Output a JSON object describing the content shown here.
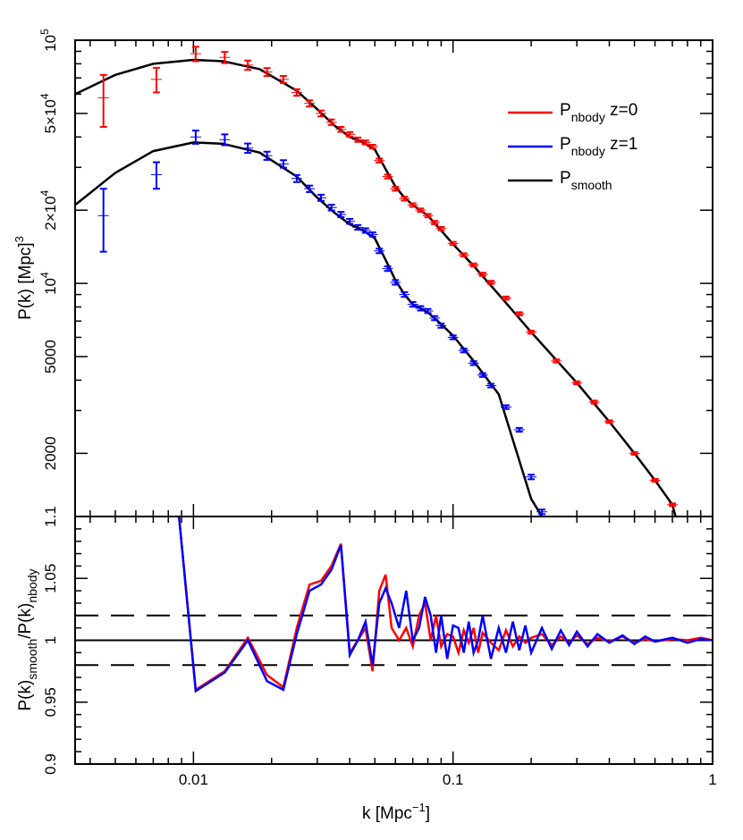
{
  "chart_data": [
    {
      "type": "line",
      "panel": "top",
      "xscale": "log",
      "yscale": "log",
      "xlim": [
        0.0035,
        1
      ],
      "ylim": [
        1100,
        100000
      ],
      "ylabel": "P(k)  [Mpc]",
      "ylabel_sup": "3",
      "xlabel": "k  [Mpc",
      "xlabel_sup": "−1",
      "xlabel_tail": "]",
      "y_ticks": [
        {
          "value": 100000,
          "label": "10",
          "sup": "5"
        },
        {
          "value": 50000,
          "label": "5×10",
          "sup": "4"
        },
        {
          "value": 20000,
          "label": "2×10",
          "sup": "4"
        },
        {
          "value": 10000,
          "label": "10",
          "sup": "4"
        },
        {
          "value": 5000,
          "label": "5000",
          "sup": ""
        },
        {
          "value": 2000,
          "label": "2000",
          "sup": ""
        }
      ],
      "legend": [
        {
          "main": "P",
          "sub": "nbody",
          "tail": " z=0",
          "color": "#ff0000"
        },
        {
          "main": "P",
          "sub": "nbody",
          "tail": " z=1",
          "color": "#0000ff"
        },
        {
          "main": "P",
          "sub": "smooth",
          "tail": "",
          "color": "#000000"
        }
      ],
      "legend_position": "top-right",
      "smooth_curves": [
        {
          "color": "#000000",
          "x": [
            0.0035,
            0.005,
            0.007,
            0.01,
            0.013,
            0.018,
            0.025,
            0.03,
            0.035,
            0.04,
            0.045,
            0.05,
            0.055,
            0.06,
            0.065,
            0.07,
            0.08,
            0.09,
            0.1,
            0.12,
            0.15,
            0.2,
            0.3,
            0.4,
            0.5,
            0.6,
            0.7,
            0.72
          ],
          "y": [
            60000,
            72000,
            80000,
            83000,
            82000,
            76000,
            62000,
            52000,
            44500,
            40000,
            38000,
            35500,
            29500,
            25000,
            22500,
            21000,
            19000,
            16500,
            14500,
            11800,
            9000,
            6300,
            3900,
            2700,
            2000,
            1550,
            1230,
            1100
          ]
        },
        {
          "color": "#000000",
          "x": [
            0.0035,
            0.005,
            0.007,
            0.01,
            0.013,
            0.018,
            0.025,
            0.03,
            0.035,
            0.04,
            0.045,
            0.05,
            0.055,
            0.06,
            0.065,
            0.07,
            0.08,
            0.09,
            0.1,
            0.12,
            0.15,
            0.2,
            0.22
          ],
          "y": [
            21000,
            28500,
            35000,
            38000,
            37500,
            34500,
            27500,
            22500,
            19500,
            17500,
            16500,
            15300,
            12500,
            10300,
            9000,
            8200,
            7600,
            6800,
            6100,
            4800,
            3500,
            1300,
            1100
          ]
        }
      ],
      "series": [
        {
          "name": "P nbody z=0",
          "color": "#ff0000",
          "x": [
            0.0045,
            0.0072,
            0.0102,
            0.0132,
            0.0162,
            0.0192,
            0.0222,
            0.025,
            0.028,
            0.031,
            0.034,
            0.037,
            0.04,
            0.043,
            0.046,
            0.049,
            0.052,
            0.056,
            0.06,
            0.065,
            0.07,
            0.075,
            0.08,
            0.085,
            0.09,
            0.1,
            0.11,
            0.12,
            0.13,
            0.14,
            0.16,
            0.18,
            0.2,
            0.25,
            0.3,
            0.35,
            0.4,
            0.5,
            0.6,
            0.7
          ],
          "y": [
            58000,
            69000,
            88000,
            85000,
            79000,
            74000,
            69000,
            61000,
            55000,
            50000,
            46000,
            43000,
            41000,
            39000,
            38000,
            36500,
            32000,
            27500,
            24500,
            22300,
            21000,
            20000,
            19000,
            17800,
            16800,
            14600,
            13100,
            11900,
            10900,
            10100,
            8700,
            7500,
            6300,
            4800,
            3900,
            3250,
            2700,
            2000,
            1550,
            1230
          ],
          "err": [
            14000,
            8000,
            6000,
            4500,
            3500,
            2800,
            2300,
            1900,
            1600,
            1400,
            1200,
            1000,
            900,
            800,
            700,
            650,
            600,
            500,
            450,
            400,
            350,
            320,
            300,
            280,
            260,
            220,
            200,
            180,
            160,
            150,
            130,
            110,
            90,
            70,
            55,
            45,
            35,
            25,
            20,
            15
          ]
        },
        {
          "name": "P nbody z=1",
          "color": "#0000ff",
          "x": [
            0.0045,
            0.0072,
            0.0102,
            0.0132,
            0.0162,
            0.0192,
            0.0222,
            0.025,
            0.028,
            0.031,
            0.034,
            0.037,
            0.04,
            0.043,
            0.046,
            0.049,
            0.052,
            0.056,
            0.06,
            0.065,
            0.07,
            0.075,
            0.08,
            0.085,
            0.09,
            0.1,
            0.11,
            0.12,
            0.13,
            0.14,
            0.16,
            0.18,
            0.2,
            0.22
          ],
          "y": [
            19000,
            28000,
            40000,
            39000,
            36000,
            33500,
            31000,
            27000,
            24500,
            22500,
            20500,
            19200,
            18000,
            17000,
            16500,
            15900,
            13600,
            11500,
            10100,
            9000,
            8200,
            7900,
            7700,
            7200,
            6700,
            6000,
            5300,
            4700,
            4200,
            3800,
            3100,
            2500,
            1600,
            1150
          ],
          "err": [
            5500,
            3500,
            2500,
            2000,
            1600,
            1300,
            1100,
            900,
            750,
            650,
            550,
            480,
            420,
            380,
            350,
            320,
            290,
            250,
            220,
            200,
            180,
            165,
            150,
            140,
            130,
            110,
            95,
            85,
            75,
            65,
            55,
            45,
            35,
            25
          ]
        }
      ]
    },
    {
      "type": "line",
      "panel": "bottom",
      "xscale": "log",
      "xlim": [
        0.0035,
        1
      ],
      "ylim": [
        0.9,
        1.1
      ],
      "ylabel_main": "P(k)",
      "ylabel_sub1": "smooth",
      "ylabel_mid": "/P(k)",
      "ylabel_sub2": "nbody",
      "y_ticks": [
        {
          "value": 0.9,
          "label": "0.9"
        },
        {
          "value": 0.95,
          "label": "0.95"
        },
        {
          "value": 1.0,
          "label": "1"
        },
        {
          "value": 1.05,
          "label": "1.05"
        },
        {
          "value": 1.1,
          "label": "1.1"
        }
      ],
      "x_ticks": [
        {
          "value": 0.01,
          "label": "0.01"
        },
        {
          "value": 0.1,
          "label": "0.1"
        },
        {
          "value": 1,
          "label": "1"
        }
      ],
      "reference_lines": [
        {
          "value": 1.0,
          "style": "solid"
        },
        {
          "value": 1.02,
          "style": "dashed"
        },
        {
          "value": 0.98,
          "style": "dashed"
        }
      ],
      "series": [
        {
          "name": "z=0",
          "color": "#ff0000",
          "x": [
            0.0088,
            0.0102,
            0.0132,
            0.0162,
            0.0192,
            0.0222,
            0.025,
            0.028,
            0.031,
            0.034,
            0.037,
            0.04,
            0.043,
            0.046,
            0.049,
            0.052,
            0.055,
            0.058,
            0.062,
            0.066,
            0.07,
            0.074,
            0.078,
            0.082,
            0.086,
            0.09,
            0.095,
            0.1,
            0.105,
            0.11,
            0.115,
            0.12,
            0.125,
            0.13,
            0.14,
            0.15,
            0.16,
            0.17,
            0.18,
            0.19,
            0.2,
            0.22,
            0.24,
            0.26,
            0.28,
            0.3,
            0.33,
            0.36,
            0.4,
            0.45,
            0.5,
            0.55,
            0.6,
            0.7,
            0.8,
            0.9,
            1.0
          ],
          "y": [
            1.1,
            0.96,
            0.975,
            1.002,
            0.972,
            0.962,
            1.01,
            1.045,
            1.048,
            1.06,
            1.078,
            0.99,
            1.0,
            1.01,
            0.975,
            1.04,
            1.053,
            1.01,
            1.0,
            1.01,
            0.995,
            1.02,
            1.03,
            1.0,
            1.02,
            0.995,
            1.005,
            1.003,
            0.99,
            1.008,
            0.998,
            1.01,
            0.99,
            1.006,
            0.998,
            0.992,
            1.008,
            0.995,
            1.003,
            0.998,
            1.002,
            1.005,
            0.996,
            1.003,
            0.998,
            1.004,
            0.997,
            1.002,
            0.999,
            1.003,
            0.998,
            1.001,
            0.999,
            1.001,
            1.0,
            1.002,
            1.0
          ]
        },
        {
          "name": "z=1",
          "color": "#0000ff",
          "x": [
            0.0088,
            0.0102,
            0.0132,
            0.0162,
            0.0192,
            0.0222,
            0.025,
            0.028,
            0.031,
            0.034,
            0.037,
            0.04,
            0.043,
            0.046,
            0.049,
            0.052,
            0.055,
            0.058,
            0.062,
            0.066,
            0.07,
            0.074,
            0.078,
            0.082,
            0.086,
            0.09,
            0.095,
            0.1,
            0.105,
            0.11,
            0.115,
            0.12,
            0.125,
            0.13,
            0.14,
            0.15,
            0.16,
            0.17,
            0.18,
            0.19,
            0.2,
            0.22,
            0.24,
            0.26,
            0.28,
            0.3,
            0.33,
            0.36,
            0.4,
            0.45,
            0.5,
            0.55,
            0.6,
            0.7,
            0.8,
            0.9,
            1.0
          ],
          "y": [
            1.1,
            0.959,
            0.974,
            1.0,
            0.967,
            0.96,
            1.005,
            1.04,
            1.045,
            1.057,
            1.077,
            0.988,
            1.0,
            1.015,
            0.98,
            1.03,
            1.042,
            1.03,
            1.01,
            1.04,
            1.0,
            1.01,
            1.035,
            1.02,
            0.99,
            1.02,
            0.985,
            1.012,
            1.01,
            0.99,
            1.015,
            0.99,
            1.0,
            1.02,
            0.985,
            1.01,
            0.99,
            1.015,
            0.992,
            1.012,
            0.99,
            1.01,
            0.993,
            1.008,
            0.996,
            1.007,
            0.995,
            1.005,
            0.998,
            1.004,
            0.997,
            1.003,
            0.999,
            1.002,
            0.998,
            1.001,
            1.0
          ]
        }
      ]
    }
  ]
}
